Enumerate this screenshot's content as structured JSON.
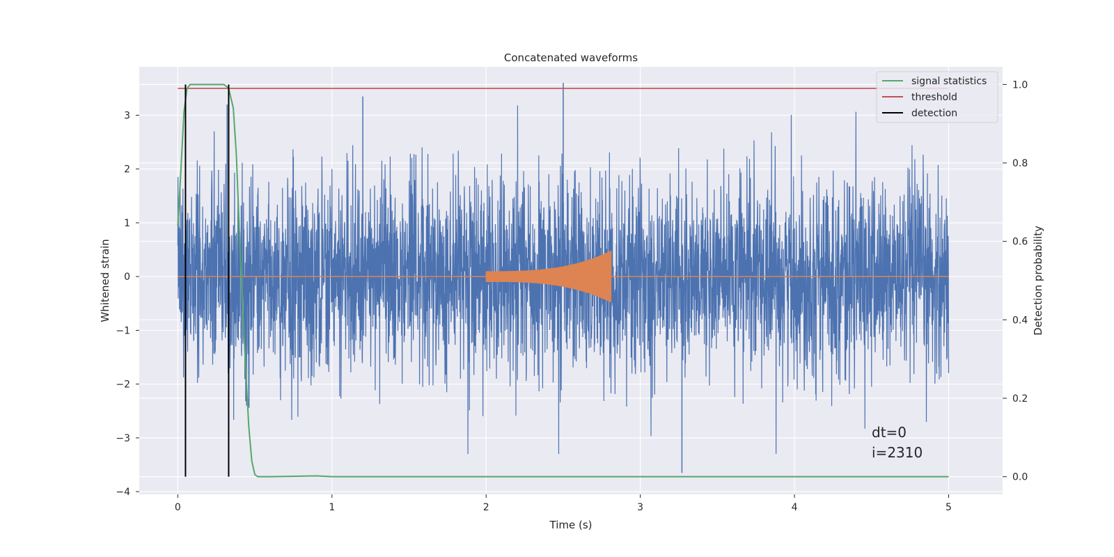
{
  "chart_data": {
    "type": "line",
    "title": "Concatenated waveforms",
    "xlabel": "Time (s)",
    "ylabel": "Whitened strain",
    "y2label": "Detection probability",
    "xlim": [
      -0.25,
      5.35
    ],
    "ylim": [
      -4.05,
      3.9
    ],
    "y2lim": [
      -0.045,
      1.045
    ],
    "xticks": [
      0,
      1,
      2,
      3,
      4,
      5
    ],
    "yticks": [
      -4,
      -3,
      -2,
      -1,
      0,
      1,
      2,
      3
    ],
    "y2ticks": [
      0.0,
      0.2,
      0.4,
      0.6,
      0.8,
      1.0
    ],
    "grid": true,
    "legend_position": "top-right",
    "series": [
      {
        "name": "",
        "axis": "left",
        "kind": "noise",
        "color": "#4c72b0",
        "x_range": [
          0,
          5
        ],
        "amplitude_sd": 0.9,
        "notable_points": [
          {
            "x": 2.5,
            "y": 3.6
          },
          {
            "x": 1.2,
            "y": 3.35
          },
          {
            "x": 3.27,
            "y": -3.65
          },
          {
            "x": 0.32,
            "y": 3.2
          }
        ]
      },
      {
        "name": "",
        "axis": "left",
        "kind": "chirp",
        "color": "#dd8452",
        "x_range": [
          0,
          5
        ],
        "chirp_start": 2.0,
        "chirp_end": 2.81,
        "peak_amplitude": 0.48
      },
      {
        "name": "signal statistics",
        "axis": "right",
        "color": "#55a868",
        "x": [
          0.0,
          0.02,
          0.04,
          0.06,
          0.08,
          0.1,
          0.15,
          0.2,
          0.25,
          0.3,
          0.33,
          0.36,
          0.38,
          0.4,
          0.42,
          0.44,
          0.46,
          0.48,
          0.5,
          0.52,
          0.6,
          0.9,
          1.0,
          5.0
        ],
        "values": [
          0.64,
          0.78,
          0.93,
          0.99,
          1.0,
          1.0,
          1.0,
          1.0,
          1.0,
          1.0,
          0.99,
          0.94,
          0.82,
          0.62,
          0.44,
          0.28,
          0.13,
          0.04,
          0.005,
          0.0,
          0.0,
          0.002,
          0.0,
          0.0
        ]
      },
      {
        "name": "threshold",
        "axis": "right",
        "color": "#c44e52",
        "x": [
          0,
          5
        ],
        "values": [
          0.99,
          0.99
        ]
      }
    ],
    "detections": {
      "name": "detection",
      "color": "#000000",
      "x": [
        0.05,
        0.33
      ]
    },
    "annotation": [
      "dt=0",
      "i=2310"
    ]
  }
}
